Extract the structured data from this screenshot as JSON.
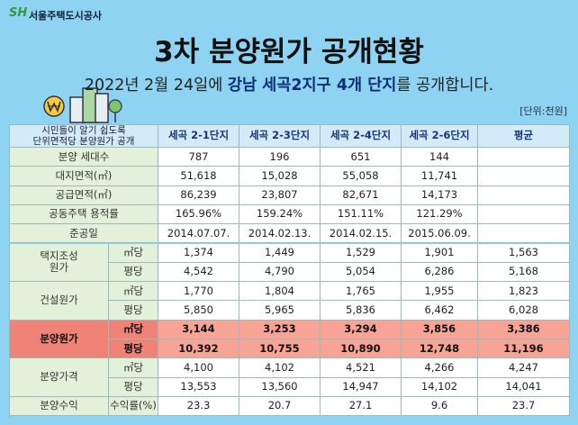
{
  "header": {
    "logo_mark": "SH",
    "logo_text": "서울주택도시공사",
    "title": "3차 분양원가 공개현황",
    "subtitle": {
      "before": "2022년 2월 24일에 ",
      "emphasis": "강남 세곡2지구 4개 단지",
      "after": "를 공개합니다."
    },
    "unit": "[단위:천원]"
  },
  "table": {
    "corner": [
      "시민들이 알기 쉽도록",
      "단위면적당 분양원가 공개"
    ],
    "columns": [
      "세곡 2-1단지",
      "세곡 2-3단지",
      "세곡 2-4단지",
      "세곡 2-6단지",
      "평균"
    ],
    "sections": [
      {
        "label": "분양 세대수",
        "cells": [
          "787",
          "196",
          "651",
          "144",
          null
        ]
      },
      {
        "label": "대지면적(㎡)",
        "cells": [
          "51,618",
          "15,028",
          "55,058",
          "11,741",
          null
        ]
      },
      {
        "label": "공급면적(㎡)",
        "cells": [
          "86,239",
          "23,807",
          "82,671",
          "14,173",
          null
        ]
      },
      {
        "label": "공동주택 용적률",
        "cells": [
          "165.96%",
          "159.24%",
          "151.11%",
          "121.29%",
          null
        ]
      },
      {
        "label": "준공일",
        "cells": [
          "2014.07.07.",
          "2014.02.13.",
          "2014.02.15.",
          "2015.06.09.",
          null
        ]
      },
      {
        "label": [
          "택지조성",
          "원가"
        ],
        "rows": [
          {
            "label": "㎡당",
            "cells": [
              "1,374",
              "1,449",
              "1,529",
              "1,901",
              "1,563"
            ]
          },
          {
            "label": "평당",
            "cells": [
              "4,542",
              "4,790",
              "5,054",
              "6,286",
              "5,168"
            ]
          }
        ]
      },
      {
        "label": [
          "건설원가"
        ],
        "rows": [
          {
            "label": "㎡당",
            "cells": [
              "1,770",
              "1,804",
              "1,765",
              "1,955",
              "1,823"
            ]
          },
          {
            "label": "평당",
            "cells": [
              "5,850",
              "5,965",
              "5,836",
              "6,462",
              "6,028"
            ]
          }
        ]
      },
      {
        "label": [
          "분양원가"
        ],
        "highlight": true,
        "rows": [
          {
            "label": "㎡당",
            "cells": [
              "3,144",
              "3,253",
              "3,294",
              "3,856",
              "3,386"
            ]
          },
          {
            "label": "평당",
            "cells": [
              "10,392",
              "10,755",
              "10,890",
              "12,748",
              "11,196"
            ]
          }
        ]
      },
      {
        "label": [
          "분양가격"
        ],
        "rows": [
          {
            "label": "㎡당",
            "cells": [
              "4,100",
              "4,102",
              "4,521",
              "4,266",
              "4,247"
            ]
          },
          {
            "label": "평당",
            "cells": [
              "13,553",
              "13,560",
              "14,947",
              "14,102",
              "14,041"
            ]
          }
        ]
      },
      {
        "label": [
          "분양수익"
        ],
        "rows": [
          {
            "label": "수익률(%)",
            "cells": [
              "23.3",
              "20.7",
              "27.1",
              "9.6",
              "23.7"
            ]
          }
        ]
      }
    ]
  }
}
